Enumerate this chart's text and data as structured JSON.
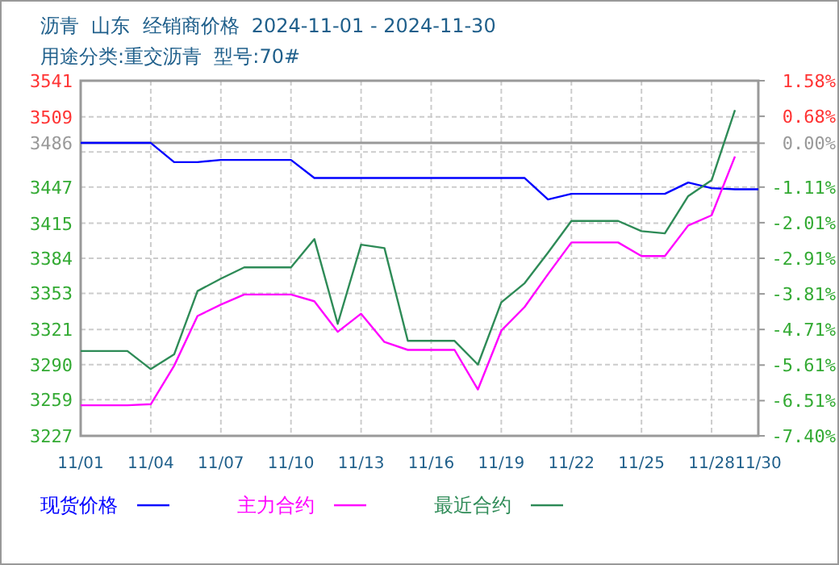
{
  "chart_data": {
    "type": "line",
    "title": "沥青  山东  经销商价格  2024-11-01 - 2024-11-30",
    "subtitle": "用途分类:重交沥青  型号:70#",
    "xlim": [
      "2024-11-01",
      "2024-11-30"
    ],
    "xticks": [
      {
        "value": "2024-11-01",
        "label": "11/01"
      },
      {
        "value": "2024-11-04",
        "label": "11/04"
      },
      {
        "value": "2024-11-07",
        "label": "11/07"
      },
      {
        "value": "2024-11-10",
        "label": "11/10"
      },
      {
        "value": "2024-11-13",
        "label": "11/13"
      },
      {
        "value": "2024-11-16",
        "label": "11/16"
      },
      {
        "value": "2024-11-19",
        "label": "11/19"
      },
      {
        "value": "2024-11-22",
        "label": "11/22"
      },
      {
        "value": "2024-11-25",
        "label": "11/25"
      },
      {
        "value": "2024-11-28",
        "label": "11/28"
      },
      {
        "value": "2024-11-30",
        "label": "11/30"
      }
    ],
    "ylim": [
      3227,
      3541
    ],
    "yticks": [
      3227,
      3259,
      3290,
      3321,
      3353,
      3384,
      3415,
      3447,
      {
        "value": 3478,
        "label": null
      },
      3486,
      3509,
      3541
    ],
    "y2lim": [
      -7.4,
      1.58
    ],
    "y2ticks": [
      {
        "value": -7.4,
        "label": "-7.40%"
      },
      {
        "value": -6.51,
        "label": "-6.51%"
      },
      {
        "value": -5.61,
        "label": "-5.61%"
      },
      {
        "value": -4.71,
        "label": "-4.71%"
      },
      {
        "value": -3.81,
        "label": "-3.81%"
      },
      {
        "value": -2.91,
        "label": "-2.91%"
      },
      {
        "value": -2.01,
        "label": "-2.01%"
      },
      {
        "value": -1.11,
        "label": "-1.11%"
      },
      {
        "value": 0,
        "label": "0.00%"
      },
      {
        "value": 0.68,
        "label": "0.68%"
      },
      {
        "value": 1.58,
        "label": "1.58%"
      }
    ],
    "ref_lines": [
      {
        "axis": "y",
        "value": 3486,
        "color": "#999999"
      }
    ],
    "grid": true,
    "legend": "bottom",
    "line_style": "solid",
    "marker": "none",
    "series": [
      {
        "name": "现货价格",
        "color": "#0000ff",
        "x": [
          "2024-11-01",
          "2024-11-02",
          "2024-11-03",
          "2024-11-04",
          "2024-11-05",
          "2024-11-06",
          "2024-11-07",
          "2024-11-08",
          "2024-11-09",
          "2024-11-10",
          "2024-11-11",
          "2024-11-12",
          "2024-11-13",
          "2024-11-14",
          "2024-11-15",
          "2024-11-16",
          "2024-11-17",
          "2024-11-18",
          "2024-11-19",
          "2024-11-20",
          "2024-11-21",
          "2024-11-22",
          "2024-11-23",
          "2024-11-24",
          "2024-11-25",
          "2024-11-26",
          "2024-11-27",
          "2024-11-28",
          "2024-11-29",
          "2024-11-30"
        ],
        "values": [
          3486,
          3486,
          3486,
          3486,
          3469,
          3469,
          3471,
          3471,
          3471,
          3471,
          3455,
          3455,
          3455,
          3455,
          3455,
          3455,
          3455,
          3455,
          3455,
          3455,
          3436,
          3441,
          3441,
          3441,
          3441,
          3441,
          3451,
          3446,
          3445,
          3445
        ]
      },
      {
        "name": "主力合约",
        "color": "#ff00ff",
        "x": [
          "2024-11-01",
          "2024-11-02",
          "2024-11-03",
          "2024-11-04",
          "2024-11-05",
          "2024-11-06",
          "2024-11-07",
          "2024-11-08",
          "2024-11-09",
          "2024-11-10",
          "2024-11-11",
          "2024-11-12",
          "2024-11-13",
          "2024-11-14",
          "2024-11-15",
          "2024-11-16",
          "2024-11-17",
          "2024-11-18",
          "2024-11-19",
          "2024-11-20",
          "2024-11-21",
          "2024-11-22",
          "2024-11-23",
          "2024-11-24",
          "2024-11-25",
          "2024-11-26",
          "2024-11-27",
          "2024-11-28",
          "2024-11-29"
        ],
        "values": [
          3254,
          3254,
          3254,
          3255,
          3289,
          3333,
          3343,
          3352,
          3352,
          3352,
          3346,
          3319,
          3335,
          3310,
          3303,
          3303,
          3303,
          3268,
          3320,
          3341,
          3370,
          3398,
          3398,
          3398,
          3386,
          3386,
          3413,
          3422,
          3474
        ]
      },
      {
        "name": "最近合约",
        "color": "#2e8b57",
        "x": [
          "2024-11-01",
          "2024-11-02",
          "2024-11-03",
          "2024-11-04",
          "2024-11-05",
          "2024-11-06",
          "2024-11-07",
          "2024-11-08",
          "2024-11-09",
          "2024-11-10",
          "2024-11-11",
          "2024-11-12",
          "2024-11-13",
          "2024-11-14",
          "2024-11-15",
          "2024-11-16",
          "2024-11-17",
          "2024-11-18",
          "2024-11-19",
          "2024-11-20",
          "2024-11-21",
          "2024-11-22",
          "2024-11-23",
          "2024-11-24",
          "2024-11-25",
          "2024-11-26",
          "2024-11-27",
          "2024-11-28",
          "2024-11-29"
        ],
        "values": [
          3302,
          3302,
          3302,
          3286,
          3299,
          3355,
          3366,
          3376,
          3376,
          3376,
          3401,
          3326,
          3396,
          3393,
          3311,
          3311,
          3311,
          3290,
          3345,
          3362,
          3389,
          3417,
          3417,
          3417,
          3408,
          3406,
          3439,
          3453,
          3515
        ]
      }
    ]
  }
}
